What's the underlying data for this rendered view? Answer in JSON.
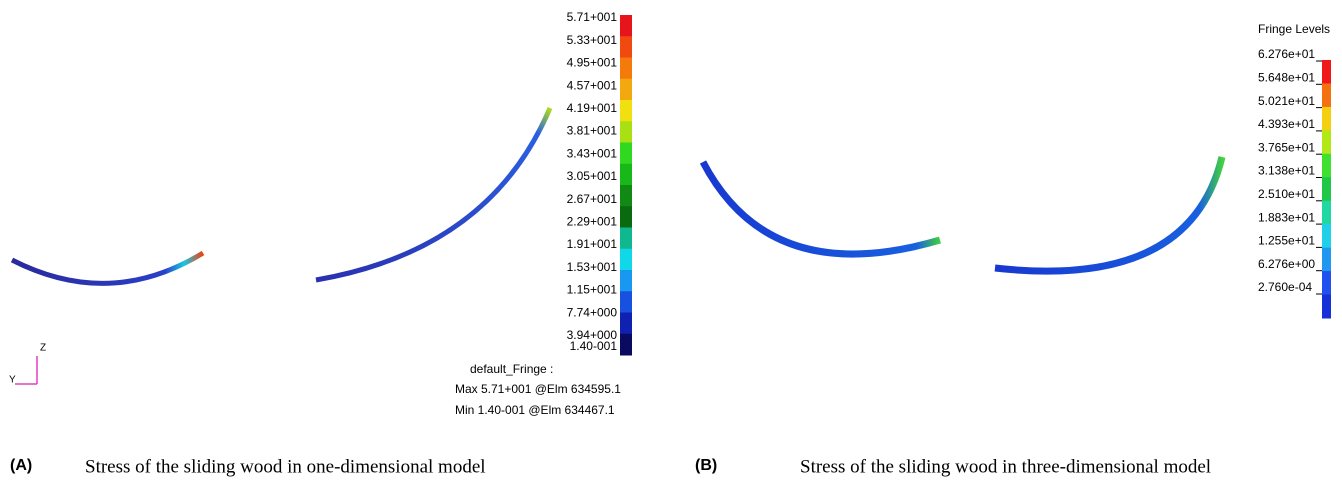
{
  "panel_a": {
    "label": "(A)",
    "caption": "Stress of the sliding wood in one-dimensional model",
    "fringe": {
      "levels": [
        "5.71+001",
        "5.33+001",
        "4.95+001",
        "4.57+001",
        "4.19+001",
        "3.81+001",
        "3.43+001",
        "3.05+001",
        "2.67+001",
        "2.29+001",
        "1.91+001",
        "1.53+001",
        "1.15+001",
        "7.74+000",
        "3.94+000",
        "1.40-001"
      ],
      "colors": [
        "#e8141c",
        "#f04a10",
        "#f47a0c",
        "#f4a810",
        "#f0e010",
        "#a8e014",
        "#30d820",
        "#18b818",
        "#108a14",
        "#0a6a10",
        "#10b890",
        "#10d8e8",
        "#1898f0",
        "#1850e0",
        "#1020b0",
        "#0a0a60"
      ]
    },
    "summary": [
      "default_Fringe :",
      "Max 5.71+001 @Elm 634595.1",
      "Min 1.40-001 @Elm 634467.1"
    ],
    "axes": {
      "z": "Z",
      "y": "Y"
    }
  },
  "panel_b": {
    "label": "(B)",
    "caption": "Stress of the sliding wood in three-dimensional model",
    "fringe": {
      "title": "Fringe Levels",
      "levels": [
        "6.276e+01",
        "5.648e+01",
        "5.021e+01",
        "4.393e+01",
        "3.765e+01",
        "3.138e+01",
        "2.510e+01",
        "1.883e+01",
        "1.255e+01",
        "6.276e+00",
        "2.760e-04"
      ],
      "colors": [
        "#f01818",
        "#f47010",
        "#f4d010",
        "#b0e818",
        "#40e030",
        "#20c848",
        "#20d8a0",
        "#20d0e8",
        "#2098f0",
        "#2050f0",
        "#1830d8"
      ]
    }
  }
}
